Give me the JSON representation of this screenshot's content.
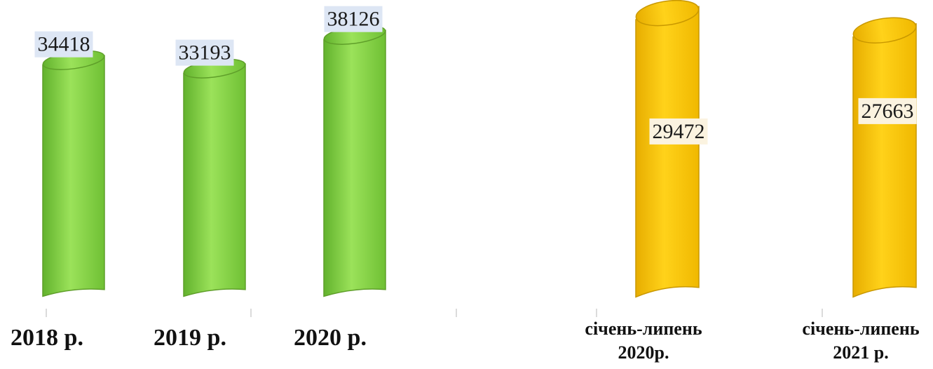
{
  "chart_data": [
    {
      "type": "bar",
      "categories": [
        "2018 р.",
        "2019 р.",
        "2020 р."
      ],
      "values": [
        34418,
        33193,
        38126
      ],
      "colors": {
        "bar": "#8fd94a",
        "bar_dark": "#5f9f2a",
        "label_bg": "#dde6f4"
      }
    },
    {
      "type": "bar",
      "categories": [
        "січень-липень 2020р.",
        "січень-липень 2021 р."
      ],
      "category_lines": [
        [
          "січень-липень",
          "2020р."
        ],
        [
          "січень-липень",
          "2021 р."
        ]
      ],
      "values": [
        29472,
        27663
      ],
      "colors": {
        "bar": "#f8c600",
        "bar_dark": "#c99800",
        "label_bg": "#fbf3e0"
      }
    }
  ]
}
